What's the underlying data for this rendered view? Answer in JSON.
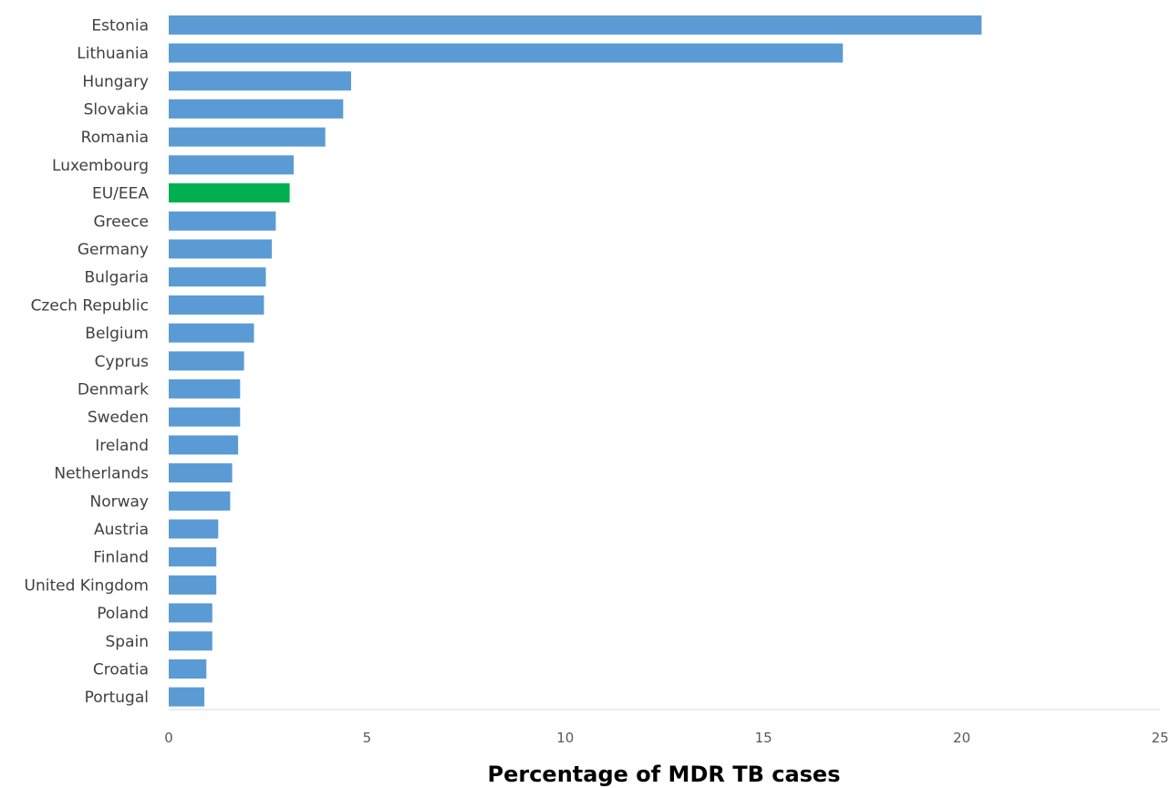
{
  "chart_data": {
    "type": "bar",
    "orientation": "horizontal",
    "xlabel": "Percentage of MDR TB cases",
    "xlim": [
      0,
      25
    ],
    "xticks": [
      0,
      5,
      10,
      15,
      20,
      25
    ],
    "grid": false,
    "categories": [
      "Estonia",
      "Lithuania",
      "Hungary",
      "Slovakia",
      "Romania",
      "Luxembourg",
      "EU/EEA",
      "Greece",
      "Germany",
      "Bulgaria",
      "Czech Republic",
      "Belgium",
      "Cyprus",
      "Denmark",
      "Sweden",
      "Ireland",
      "Netherlands",
      "Norway",
      "Austria",
      "Finland",
      "United Kingdom",
      "Poland",
      "Spain",
      "Croatia",
      "Portugal"
    ],
    "values": [
      20.5,
      17.0,
      4.6,
      4.4,
      3.95,
      3.15,
      3.05,
      2.7,
      2.6,
      2.45,
      2.4,
      2.15,
      1.9,
      1.8,
      1.8,
      1.75,
      1.6,
      1.55,
      1.25,
      1.2,
      1.2,
      1.1,
      1.1,
      0.95,
      0.9
    ],
    "highlight_category": "EU/EEA",
    "colors": {
      "bar": "#5B9BD5",
      "highlight": "#00B050",
      "axis": "#D9D9D9"
    }
  }
}
